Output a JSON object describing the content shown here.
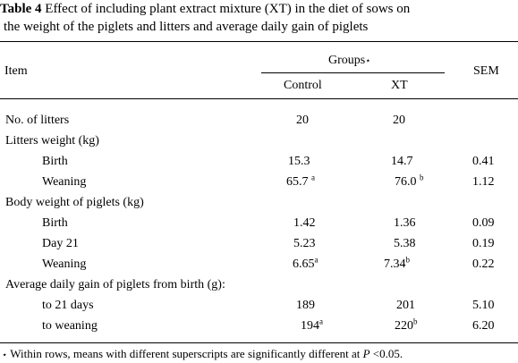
{
  "caption": {
    "label": "Table 4",
    "line1": " Effect of including plant extract mixture (XT) in the diet of sows on",
    "line2": "the weight of the piglets and litters and average daily gain of piglets"
  },
  "header": {
    "item": "Item",
    "groups": "Groups",
    "groups_mark": "⋆",
    "control": "Control",
    "xt": "XT",
    "sem": "SEM"
  },
  "rows": {
    "litters_no": {
      "label": "No. of litters",
      "control": "20",
      "xt": "20",
      "sem": ""
    },
    "litters_weight": {
      "label": "Litters weight (kg)"
    },
    "lw_birth": {
      "label": "Birth",
      "control": "15.3",
      "xt": "14.7",
      "sem": "0.41"
    },
    "lw_weaning": {
      "label": "Weaning",
      "control": "65.7",
      "control_sup": "a",
      "xt": "76.0",
      "xt_sup": "b",
      "sem": "1.12"
    },
    "body_weight": {
      "label": "Body weight of piglets (kg)"
    },
    "bw_birth": {
      "label": "Birth",
      "control": "1.42",
      "xt": "1.36",
      "sem": "0.09"
    },
    "bw_day21": {
      "label": "Day 21",
      "control": "5.23",
      "xt": "5.38",
      "sem": "0.19"
    },
    "bw_weaning": {
      "label": "Weaning",
      "control": "6.65",
      "control_sup": "a",
      "xt": "7.34",
      "xt_sup": "b",
      "sem": "0.22"
    },
    "adg": {
      "label": "Average daily gain of piglets from birth (g):"
    },
    "adg_21": {
      "label": "to 21 days",
      "control": "189",
      "xt": "201",
      "sem": "5.10"
    },
    "adg_weaning": {
      "label": "to weaning",
      "control": "194",
      "control_sup": "a",
      "xt": "220",
      "xt_sup": "b",
      "sem": "6.20"
    }
  },
  "footnote": {
    "mark": "⋆",
    "text": " Within rows, means with different superscripts are significantly different at ",
    "p": "P",
    "tail": " <0.05."
  }
}
